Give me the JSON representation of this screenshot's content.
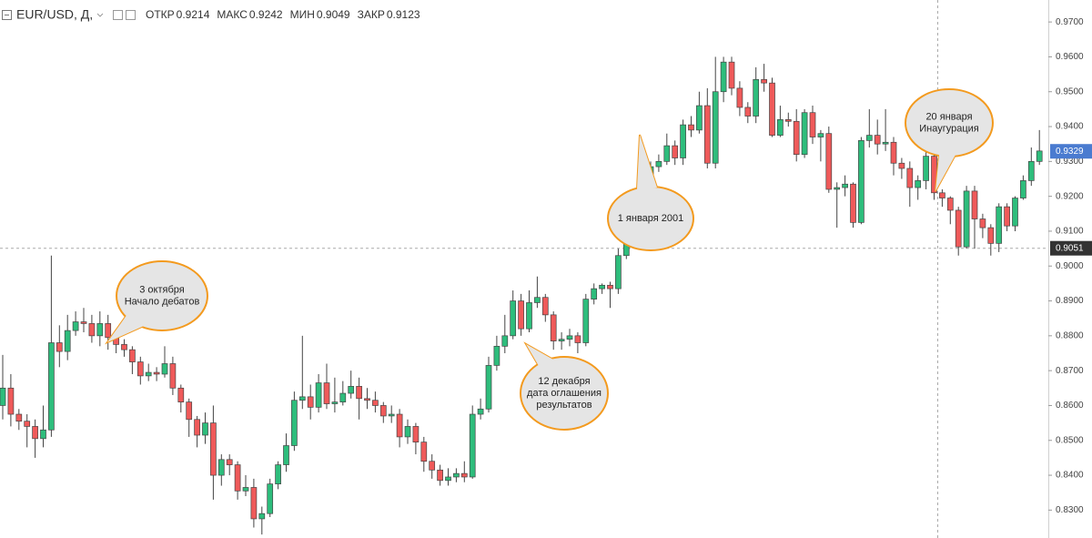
{
  "chart_data": {
    "type": "candlestick",
    "symbol": "EUR/USD, Д,",
    "ohlc_header": [
      {
        "label": "ОТКР",
        "value": 0.9214
      },
      {
        "label": "МАКС",
        "value": 0.9242
      },
      {
        "label": "МИН",
        "value": 0.9049
      },
      {
        "label": "ЗАКР",
        "value": 0.9123
      }
    ],
    "ylim": [
      0.822,
      0.9763
    ],
    "yticks": [
      {
        "value": 0.97,
        "label": "0.9700"
      },
      {
        "value": 0.96,
        "label": "0.9600"
      },
      {
        "value": 0.95,
        "label": "0.9500"
      },
      {
        "value": 0.94,
        "label": "0.9400"
      },
      {
        "value": 0.93,
        "label": "0.9300"
      },
      {
        "value": 0.92,
        "label": "0.9200"
      },
      {
        "value": 0.91,
        "label": "0.9100"
      },
      {
        "value": 0.9,
        "label": "0.9000"
      },
      {
        "value": 0.89,
        "label": "0.8900"
      },
      {
        "value": 0.88,
        "label": "0.8800"
      },
      {
        "value": 0.87,
        "label": "0.8700"
      },
      {
        "value": 0.86,
        "label": "0.8600"
      },
      {
        "value": 0.85,
        "label": "0.8500"
      },
      {
        "value": 0.84,
        "label": "0.8400"
      },
      {
        "value": 0.83,
        "label": "0.8300"
      }
    ],
    "last_price": 0.9329,
    "crosshair_price": 0.9051,
    "up_color": "#2ebd7c",
    "down_color": "#ef5a5a",
    "open": [
      0.86,
      0.865,
      0.8575,
      0.8555,
      0.854,
      0.8505,
      0.853,
      0.878,
      0.8755,
      0.8815,
      0.884,
      0.8835,
      0.88,
      0.8835,
      0.8795,
      0.8775,
      0.876,
      0.8725,
      0.8685,
      0.8695,
      0.869,
      0.872,
      0.865,
      0.861,
      0.856,
      0.8515,
      0.855,
      0.84,
      0.8445,
      0.843,
      0.8355,
      0.8365,
      0.8275,
      0.829,
      0.8375,
      0.843,
      0.8485,
      0.8615,
      0.8625,
      0.8595,
      0.8665,
      0.8605,
      0.861,
      0.8635,
      0.8655,
      0.862,
      0.8615,
      0.86,
      0.857,
      0.8575,
      0.851,
      0.854,
      0.8495,
      0.844,
      0.8415,
      0.8385,
      0.8395,
      0.8405,
      0.8395,
      0.8575,
      0.859,
      0.8715,
      0.877,
      0.88,
      0.89,
      0.882,
      0.8895,
      0.891,
      0.886,
      0.8785,
      0.879,
      0.88,
      0.878,
      0.8905,
      0.8935,
      0.8945,
      0.8935,
      0.903,
      0.909,
      0.9175,
      0.9225,
      0.9285,
      0.93,
      0.9345,
      0.931,
      0.9405,
      0.939,
      0.946,
      0.9295,
      0.95,
      0.9585,
      0.951,
      0.9455,
      0.943,
      0.9535,
      0.9525,
      0.9375,
      0.942,
      0.9415,
      0.932,
      0.944,
      0.937,
      0.938,
      0.922,
      0.9225,
      0.9235,
      0.9125,
      0.936,
      0.9375,
      0.935,
      0.9355,
      0.9295,
      0.928,
      0.9225,
      0.9245,
      0.9315,
      0.921,
      0.9195,
      0.916,
      0.9055,
      0.9215,
      0.9135,
      0.911,
      0.9065,
      0.917,
      0.9115,
      0.9195,
      0.9245,
      0.93
    ],
    "high": [
      0.8745,
      0.869,
      0.859,
      0.8575,
      0.856,
      0.86,
      0.903,
      0.883,
      0.886,
      0.887,
      0.888,
      0.886,
      0.887,
      0.886,
      0.881,
      0.879,
      0.877,
      0.874,
      0.872,
      0.871,
      0.877,
      0.874,
      0.866,
      0.862,
      0.857,
      0.858,
      0.86,
      0.846,
      0.846,
      0.844,
      0.84,
      0.839,
      0.831,
      0.839,
      0.844,
      0.852,
      0.864,
      0.88,
      0.866,
      0.869,
      0.872,
      0.868,
      0.867,
      0.87,
      0.868,
      0.865,
      0.864,
      0.861,
      0.86,
      0.859,
      0.856,
      0.855,
      0.851,
      0.846,
      0.843,
      0.842,
      0.842,
      0.844,
      0.86,
      0.862,
      0.874,
      0.88,
      0.886,
      0.893,
      0.892,
      0.893,
      0.897,
      0.892,
      0.887,
      0.881,
      0.882,
      0.881,
      0.892,
      0.895,
      0.895,
      0.8955,
      0.905,
      0.911,
      0.919,
      0.924,
      0.93,
      0.932,
      0.938,
      0.936,
      0.942,
      0.943,
      0.95,
      0.951,
      0.96,
      0.96,
      0.96,
      0.953,
      0.947,
      0.957,
      0.958,
      0.954,
      0.946,
      0.944,
      0.945,
      0.945,
      0.946,
      0.939,
      0.94,
      0.924,
      0.926,
      0.924,
      0.937,
      0.945,
      0.942,
      0.945,
      0.937,
      0.931,
      0.93,
      0.926,
      0.933,
      0.933,
      0.922,
      0.92,
      0.917,
      0.923,
      0.923,
      0.915,
      0.912,
      0.918,
      0.918,
      0.92,
      0.926,
      0.934,
      0.939
    ],
    "low": [
      0.856,
      0.854,
      0.853,
      0.848,
      0.845,
      0.848,
      0.851,
      0.871,
      0.873,
      0.88,
      0.881,
      0.878,
      0.877,
      0.876,
      0.875,
      0.874,
      0.869,
      0.866,
      0.867,
      0.867,
      0.868,
      0.863,
      0.858,
      0.851,
      0.848,
      0.849,
      0.833,
      0.837,
      0.84,
      0.833,
      0.834,
      0.825,
      0.823,
      0.828,
      0.836,
      0.841,
      0.847,
      0.859,
      0.856,
      0.858,
      0.859,
      0.858,
      0.86,
      0.862,
      0.856,
      0.859,
      0.858,
      0.855,
      0.855,
      0.848,
      0.849,
      0.846,
      0.841,
      0.839,
      0.837,
      0.837,
      0.838,
      0.838,
      0.839,
      0.856,
      0.858,
      0.87,
      0.875,
      0.879,
      0.88,
      0.881,
      0.888,
      0.884,
      0.876,
      0.876,
      0.877,
      0.875,
      0.877,
      0.889,
      0.892,
      0.888,
      0.892,
      0.902,
      0.908,
      0.916,
      0.921,
      0.927,
      0.929,
      0.929,
      0.929,
      0.937,
      0.938,
      0.928,
      0.928,
      0.947,
      0.949,
      0.943,
      0.941,
      0.941,
      0.95,
      0.937,
      0.937,
      0.94,
      0.93,
      0.931,
      0.935,
      0.93,
      0.921,
      0.911,
      0.92,
      0.911,
      0.912,
      0.934,
      0.932,
      0.933,
      0.926,
      0.925,
      0.917,
      0.919,
      0.922,
      0.919,
      0.917,
      0.912,
      0.903,
      0.905,
      0.905,
      0.908,
      0.903,
      0.904,
      0.91,
      0.91,
      0.919,
      0.923,
      0.929
    ],
    "close": [
      0.865,
      0.8575,
      0.8555,
      0.854,
      0.8505,
      0.853,
      0.878,
      0.8755,
      0.8815,
      0.884,
      0.8835,
      0.88,
      0.8835,
      0.8795,
      0.8775,
      0.876,
      0.8725,
      0.8685,
      0.8695,
      0.869,
      0.872,
      0.865,
      0.861,
      0.856,
      0.8515,
      0.855,
      0.84,
      0.8445,
      0.843,
      0.8355,
      0.8365,
      0.8275,
      0.829,
      0.8375,
      0.843,
      0.8485,
      0.8615,
      0.8625,
      0.8595,
      0.8665,
      0.8605,
      0.861,
      0.8635,
      0.8655,
      0.862,
      0.8615,
      0.86,
      0.857,
      0.8575,
      0.851,
      0.854,
      0.8495,
      0.844,
      0.8415,
      0.8385,
      0.8395,
      0.8405,
      0.8395,
      0.8575,
      0.859,
      0.8715,
      0.877,
      0.88,
      0.89,
      0.882,
      0.8895,
      0.891,
      0.886,
      0.8785,
      0.879,
      0.88,
      0.878,
      0.8905,
      0.8935,
      0.8945,
      0.8935,
      0.903,
      0.909,
      0.9175,
      0.9225,
      0.9285,
      0.93,
      0.9345,
      0.931,
      0.9405,
      0.939,
      0.946,
      0.9295,
      0.95,
      0.9585,
      0.951,
      0.9455,
      0.943,
      0.9535,
      0.9525,
      0.9375,
      0.942,
      0.9415,
      0.932,
      0.944,
      0.937,
      0.938,
      0.922,
      0.9225,
      0.9235,
      0.9125,
      0.936,
      0.9375,
      0.935,
      0.9355,
      0.9295,
      0.928,
      0.9225,
      0.9245,
      0.9315,
      0.921,
      0.9195,
      0.916,
      0.9055,
      0.9215,
      0.9135,
      0.911,
      0.9065,
      0.917,
      0.9115,
      0.9195,
      0.9245,
      0.93,
      0.933
    ],
    "annotations": [
      {
        "lines": [
          "3 октября",
          "Начало дебатов"
        ]
      },
      {
        "lines": [
          "12 декабря",
          "дата оглашения",
          "результатов"
        ]
      },
      {
        "lines": [
          "1 января 2001"
        ]
      },
      {
        "lines": [
          "20 января",
          "Инаугурация"
        ]
      }
    ]
  }
}
